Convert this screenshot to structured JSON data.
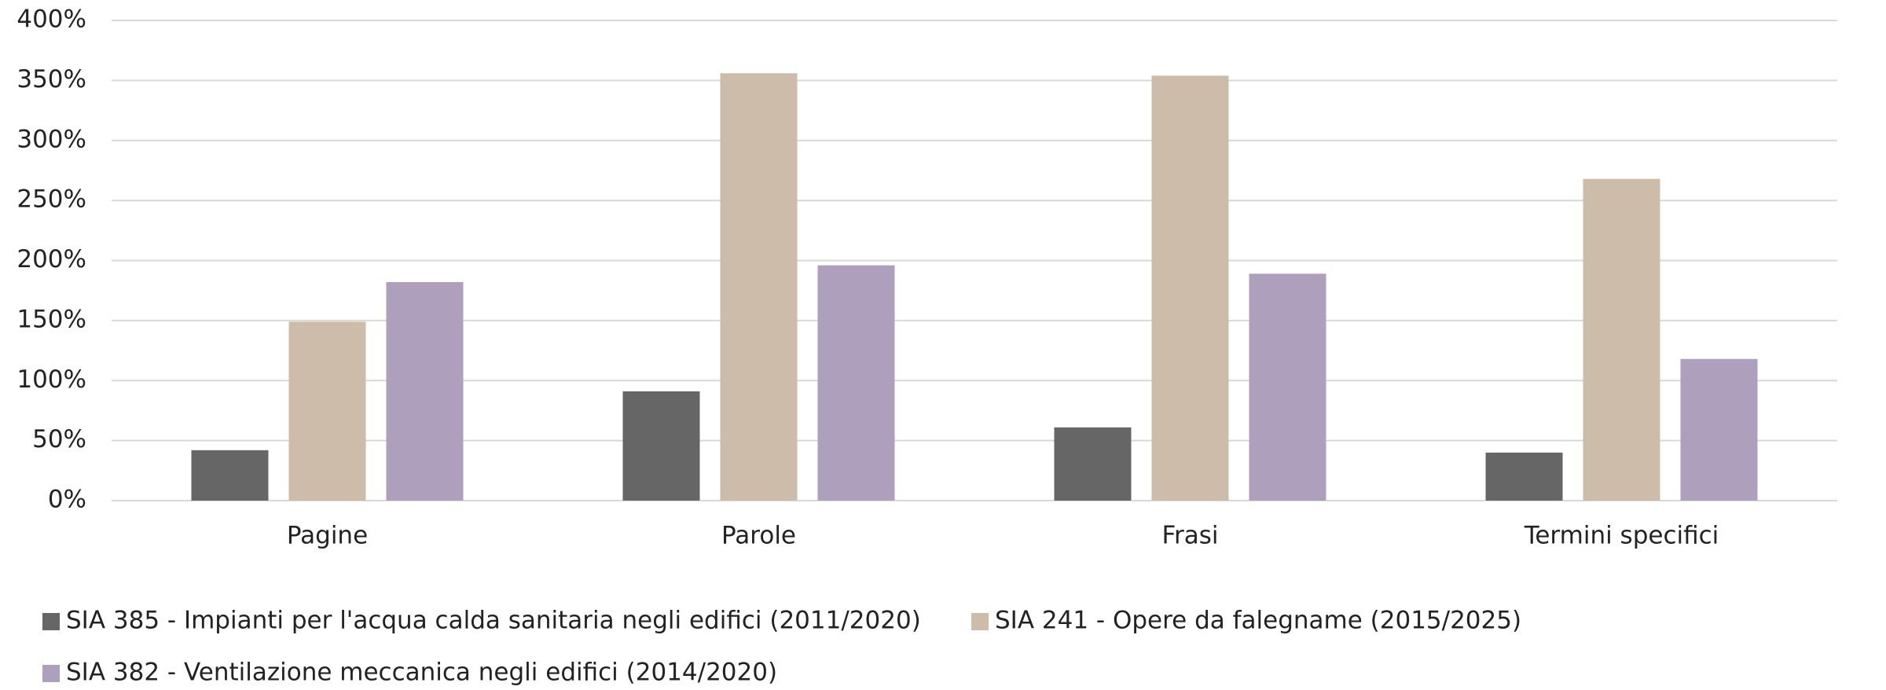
{
  "chart_data": {
    "type": "bar",
    "categories": [
      "Pagine",
      "Parole",
      "Frasi",
      "Termini specifici"
    ],
    "series": [
      {
        "name": "SIA 385 - Impianti per l'acqua calda sanitaria negli edifici (2011/2020)",
        "color": "#666666",
        "values": [
          42,
          91,
          61,
          40
        ]
      },
      {
        "name": "SIA 241 - Opere da falegname (2015/2025)",
        "color": "#cdbcaa",
        "values": [
          149,
          356,
          354,
          268
        ]
      },
      {
        "name": "SIA 382 - Ventilazione meccanica negli edifici (2014/2020)",
        "color": "#ae9fbd",
        "values": [
          182,
          196,
          189,
          118
        ]
      }
    ],
    "ylim": [
      0,
      400
    ],
    "yticks": [
      {
        "value": 0,
        "label": "0%"
      },
      {
        "value": 50,
        "label": "50%"
      },
      {
        "value": 100,
        "label": "100%"
      },
      {
        "value": 150,
        "label": "150%"
      },
      {
        "value": 200,
        "label": "200%"
      },
      {
        "value": 250,
        "label": "250%"
      },
      {
        "value": 300,
        "label": "300%"
      },
      {
        "value": 350,
        "label": "350%"
      },
      {
        "value": 400,
        "label": "400%"
      }
    ],
    "grid": true,
    "legend": "bottom"
  }
}
